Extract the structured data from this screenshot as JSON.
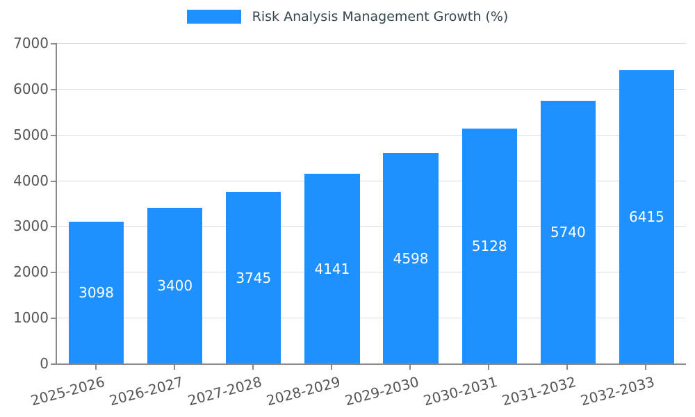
{
  "chart_data": {
    "type": "bar",
    "title": "Risk Analysis Management Growth (%)",
    "categories": [
      "2025-2026",
      "2026-2027",
      "2027-2028",
      "2028-2029",
      "2029-2030",
      "2030-2031",
      "2031-2032",
      "2032-2033"
    ],
    "values": [
      3098,
      3400,
      3745,
      4141,
      4598,
      5128,
      5740,
      6415
    ],
    "ylim": [
      0,
      7000
    ],
    "ytick_step": 1000,
    "grid": true,
    "legend_position": "top-center",
    "bar_color": "#1e90ff",
    "value_label_color": "#ffffff",
    "axis_color": "#8a8a8a",
    "tick_label_color": "#555555",
    "title_color": "#37474f"
  }
}
